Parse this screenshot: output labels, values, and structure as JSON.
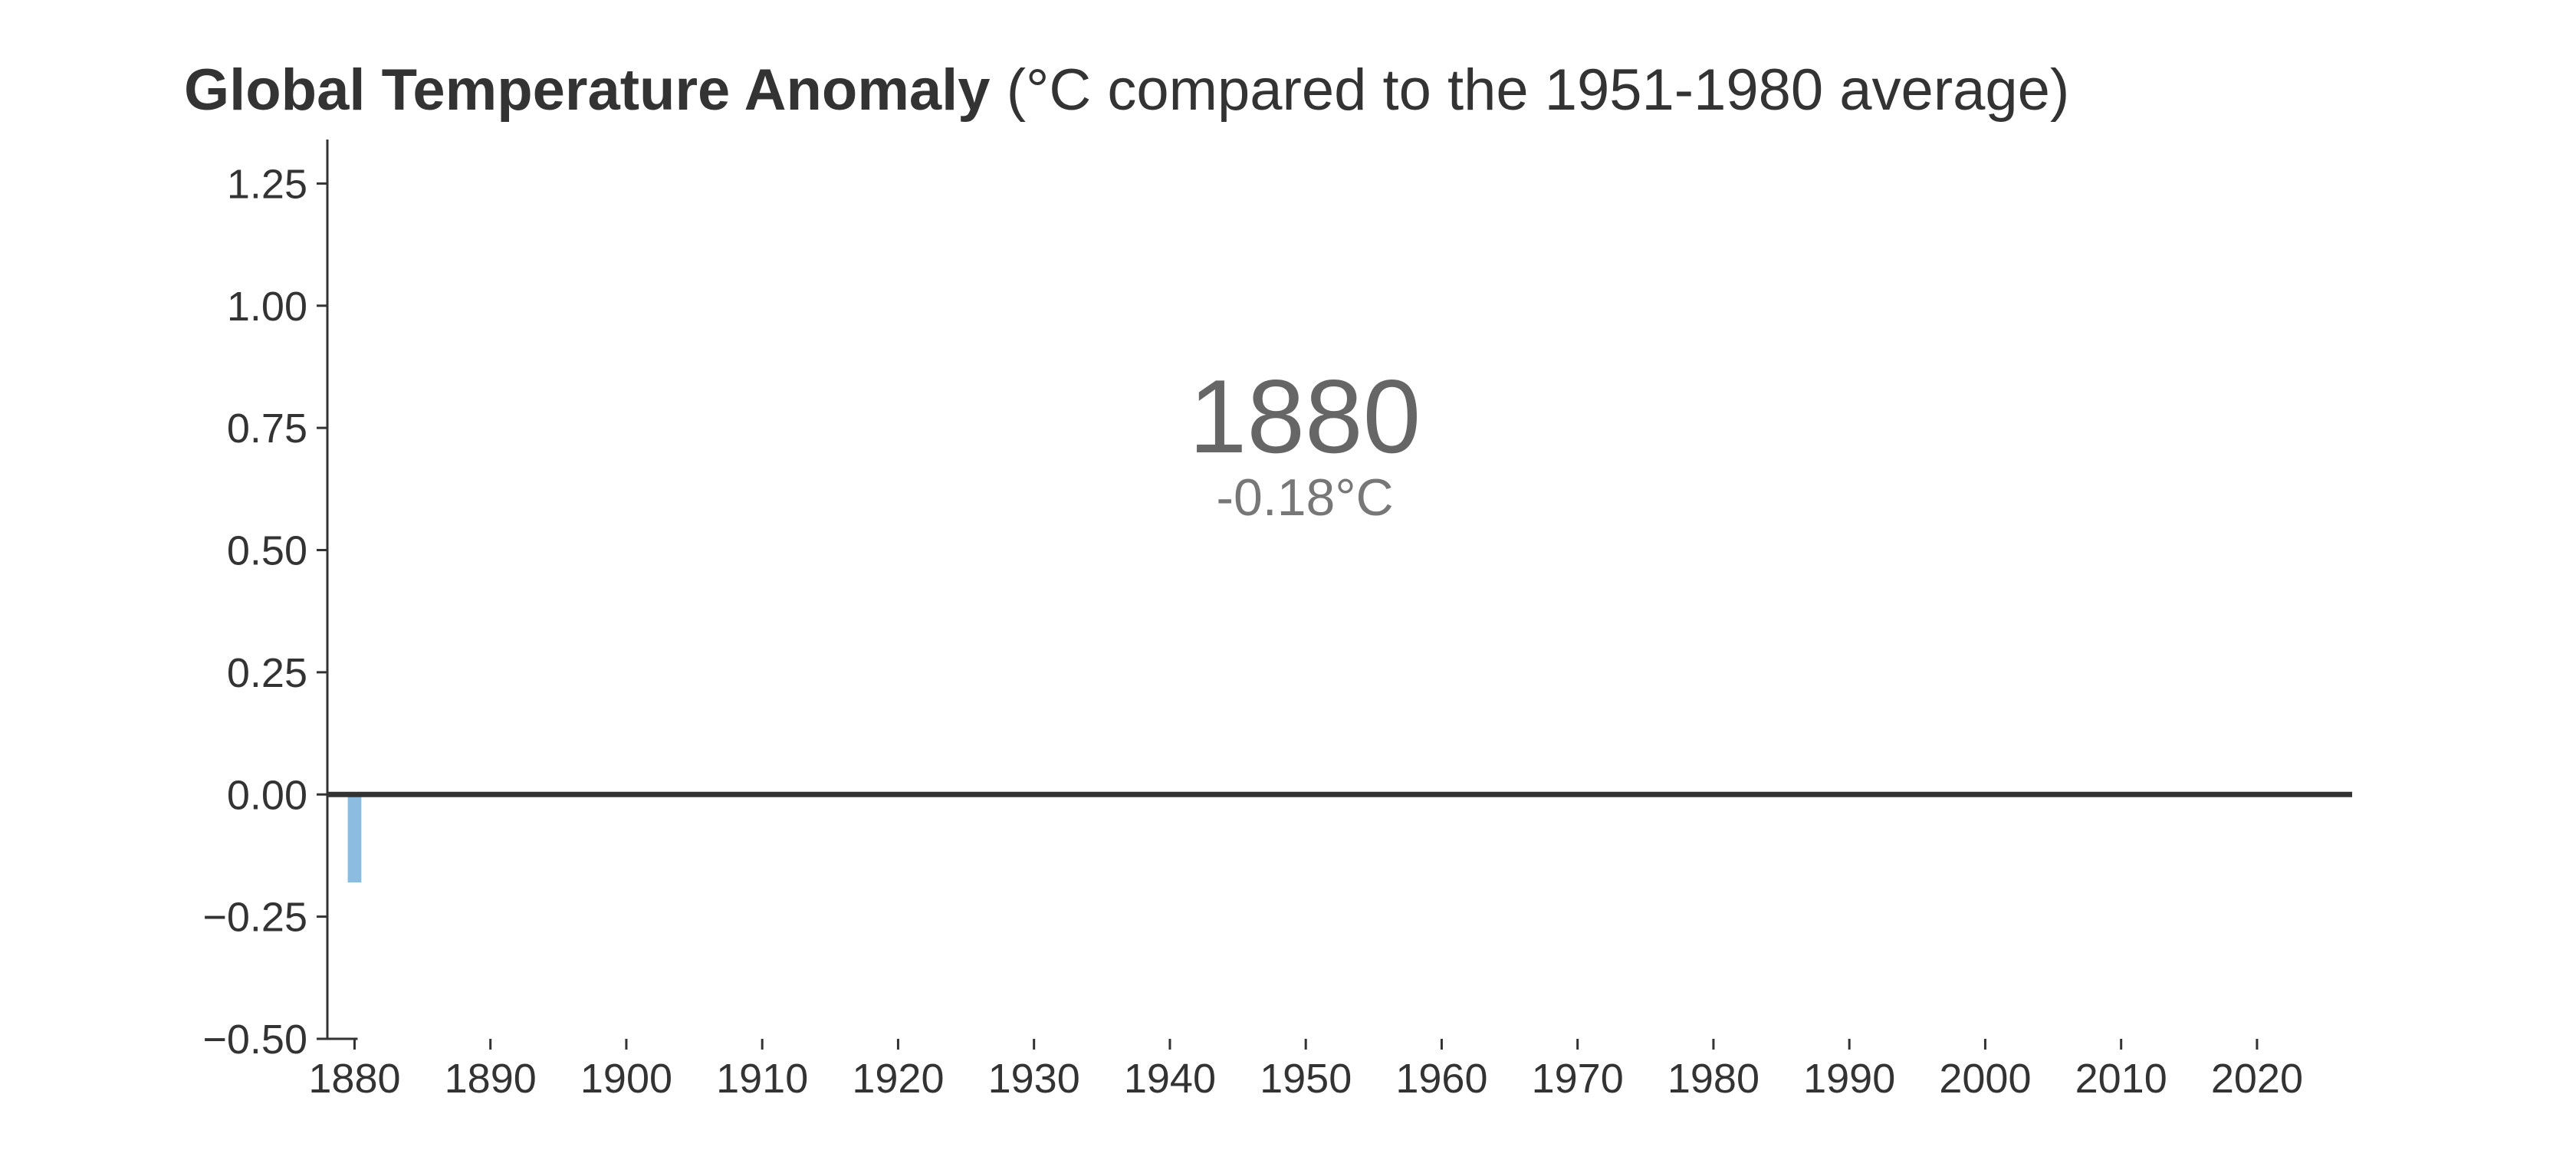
{
  "title": {
    "bold": "Global Temperature Anomaly",
    "rest": " (°C compared to the 1951-1980 average)"
  },
  "annotation": {
    "year": "1880",
    "value": "-0.18°C"
  },
  "colors": {
    "bar": "#8cbde0",
    "axis": "#333333",
    "zero_line": "#333333",
    "annotation": "#666666"
  },
  "chart_data": {
    "type": "bar",
    "title": "Global Temperature Anomaly (°C compared to the 1951-1980 average)",
    "xlabel": "",
    "ylabel": "",
    "x": [
      1880
    ],
    "values": [
      -0.18
    ],
    "xlim": [
      1878,
      2027
    ],
    "ylim": [
      -0.5,
      1.34
    ],
    "x_ticks": [
      1880,
      1890,
      1900,
      1910,
      1920,
      1930,
      1940,
      1950,
      1960,
      1970,
      1980,
      1990,
      2000,
      2010,
      2020
    ],
    "x_tick_labels": [
      "1880",
      "1890",
      "1900",
      "1910",
      "1920",
      "1930",
      "1940",
      "1950",
      "1960",
      "1970",
      "1980",
      "1990",
      "2000",
      "2010",
      "2020"
    ],
    "y_ticks": [
      -0.5,
      -0.25,
      0,
      0.25,
      0.5,
      0.75,
      1.0,
      1.25
    ],
    "y_tick_labels": [
      "−0.50",
      "−0.25",
      "0.00",
      "0.25",
      "0.50",
      "0.75",
      "1.00",
      "1.25"
    ],
    "grid": false,
    "zero_line": true
  }
}
